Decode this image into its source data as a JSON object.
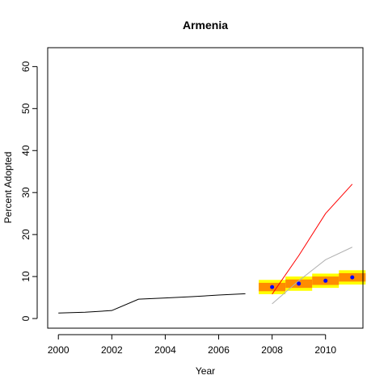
{
  "chart_data": {
    "type": "line",
    "title": "Armenia",
    "xlabel": "Year",
    "ylabel": "Percent Adopted",
    "xlim": [
      1999.6,
      2011.4
    ],
    "ylim": [
      -2.3,
      64.5
    ],
    "xticks": [
      "2000",
      "2002",
      "2004",
      "2006",
      "2008",
      "2010"
    ],
    "yticks": [
      "0",
      "10",
      "20",
      "30",
      "40",
      "50",
      "60"
    ],
    "grid": false,
    "series": [
      {
        "role": "historical",
        "color": "#000000",
        "x": [
          2000,
          2001,
          2002,
          2003,
          2004,
          2005,
          2006,
          2007
        ],
        "y": [
          1.3,
          1.5,
          1.9,
          4.6,
          4.9,
          5.2,
          5.6,
          5.9
        ]
      },
      {
        "role": "upper-projection",
        "color": "#ff0000",
        "x": [
          2008,
          2009,
          2010,
          2011
        ],
        "y": [
          5.8,
          15.0,
          25.0,
          32.0
        ]
      },
      {
        "role": "lower-projection",
        "color": "#b0b0b0",
        "x": [
          2008,
          2009,
          2010,
          2011
        ],
        "y": [
          3.5,
          9.0,
          14.0,
          17.0
        ]
      },
      {
        "role": "forecast-points",
        "color": "#0000ff",
        "x": [
          2008,
          2009,
          2010,
          2011
        ],
        "y": [
          7.5,
          8.3,
          9.0,
          9.8
        ]
      }
    ],
    "bands": [
      {
        "color": "#ffff00",
        "x": [
          2008,
          2009,
          2010,
          2011
        ],
        "low": [
          5.8,
          6.6,
          7.3,
          8.1
        ],
        "high": [
          9.2,
          10.0,
          10.7,
          11.5
        ]
      },
      {
        "color": "#ff8c00",
        "x": [
          2008,
          2009,
          2010,
          2011
        ],
        "low": [
          6.5,
          7.3,
          8.0,
          8.8
        ],
        "high": [
          8.5,
          9.3,
          10.0,
          10.8
        ]
      }
    ]
  }
}
